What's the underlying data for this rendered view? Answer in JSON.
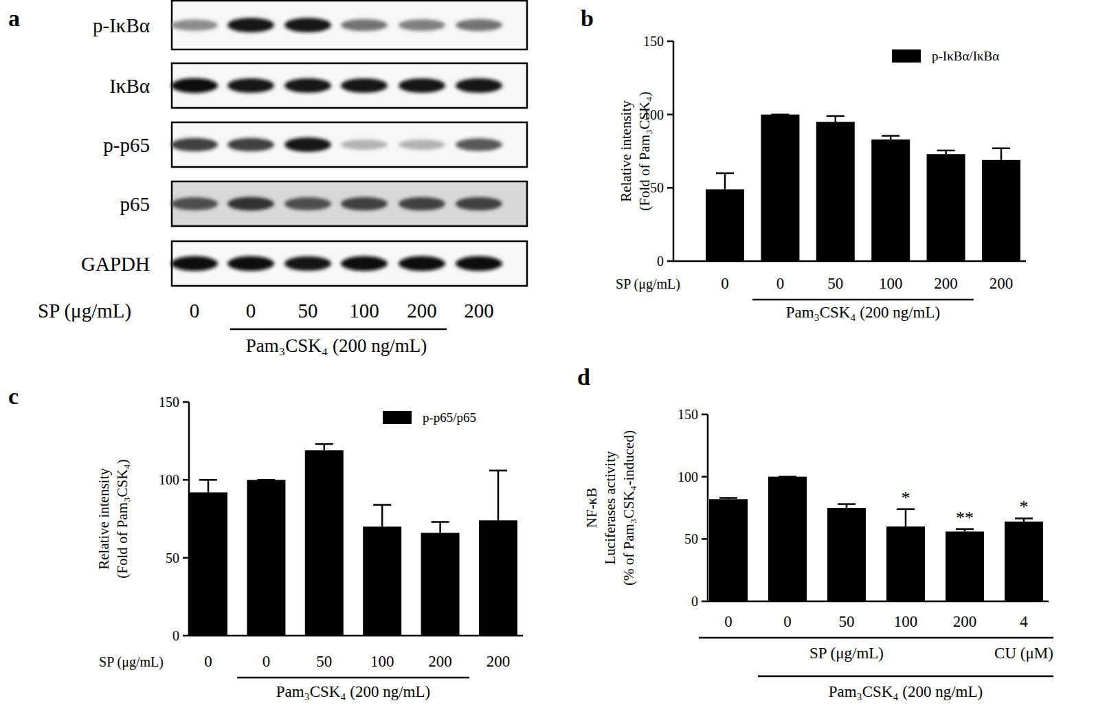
{
  "blot": {
    "panel_label": "a",
    "rows": [
      "p-IκBα",
      "IκBα",
      "p-p65",
      "p65",
      "GAPDH"
    ],
    "bands": [
      [
        0.45,
        0.9,
        0.9,
        0.55,
        0.5,
        0.55
      ],
      [
        0.95,
        0.9,
        0.9,
        0.9,
        0.9,
        0.9
      ],
      [
        0.75,
        0.75,
        0.9,
        0.3,
        0.3,
        0.65
      ],
      [
        0.7,
        0.8,
        0.7,
        0.75,
        0.75,
        0.75
      ],
      [
        0.95,
        0.95,
        0.92,
        0.95,
        0.95,
        0.95
      ]
    ],
    "treatment_label": "SP (μg/mL)",
    "doses": [
      "0",
      "0",
      "50",
      "100",
      "200",
      "200"
    ],
    "stimulus": {
      "label": "Pam₃CSK₄ (200 ng/mL)",
      "from": 1,
      "to": 4
    }
  },
  "chart_data": [
    {
      "type": "bar",
      "panel_label": "b",
      "categories": [
        "0",
        "0",
        "50",
        "100",
        "200",
        "200"
      ],
      "series": [
        {
          "name": "p-IκBα/IκBα",
          "color": "#000000",
          "values": [
            49,
            100,
            95,
            83,
            73,
            69
          ],
          "errors": [
            11,
            0,
            4,
            2.5,
            2.5,
            8
          ]
        }
      ],
      "legend": "upper right",
      "ylim": [
        0,
        150
      ],
      "yticks": [
        0,
        50,
        100,
        150
      ],
      "y_label": [
        "Relative intensity",
        "(Fold of Pam₃CSK₄)"
      ],
      "x_label": "SP (μg/mL)",
      "group_rows": [
        [
          {
            "label": "Pam₃CSK₄ (200 ng/mL)",
            "from": 1,
            "to": 4
          }
        ]
      ]
    },
    {
      "type": "bar",
      "panel_label": "c",
      "categories": [
        "0",
        "0",
        "50",
        "100",
        "200",
        "200"
      ],
      "series": [
        {
          "name": "p-p65/p65",
          "color": "#000000",
          "values": [
            92,
            100,
            119,
            70,
            66,
            74
          ],
          "errors": [
            8,
            0,
            4,
            14,
            7,
            32
          ]
        }
      ],
      "legend": "upper right",
      "ylim": [
        0,
        150
      ],
      "yticks": [
        0,
        50,
        100,
        150
      ],
      "y_label": [
        "Relative intensity",
        "(Fold of Pam₃CSK₄)"
      ],
      "x_label": "SP (μg/mL)",
      "group_rows": [
        [
          {
            "label": "Pam₃CSK₄ (200 ng/mL)",
            "from": 1,
            "to": 4
          }
        ]
      ]
    },
    {
      "type": "bar",
      "panel_label": "d",
      "categories": [
        "0",
        "0",
        "50",
        "100",
        "200",
        "4"
      ],
      "color": "#000000",
      "values": [
        82,
        100,
        75,
        60,
        56,
        64
      ],
      "errors": [
        1,
        0,
        3,
        14,
        2,
        2.5
      ],
      "significance": [
        null,
        null,
        null,
        "*",
        "**",
        "*"
      ],
      "ylim": [
        0,
        150
      ],
      "yticks": [
        0,
        50,
        100,
        150
      ],
      "y_label": [
        "NF-κB",
        "Luciferases activity",
        "(% of Pam₃CSK₄-induced)"
      ],
      "group_rows": [
        [
          {
            "label": "SP (μg/mL)",
            "from": 0,
            "to": 4
          },
          {
            "label": "CU (μM)",
            "from": 5,
            "to": 5
          }
        ],
        [
          {
            "label": "Pam₃CSK₄ (200 ng/mL)",
            "from": 1,
            "to": 5
          }
        ]
      ]
    }
  ]
}
